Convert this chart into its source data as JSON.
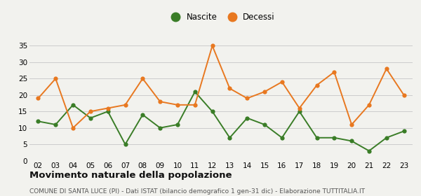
{
  "years": [
    "02",
    "03",
    "04",
    "05",
    "06",
    "07",
    "08",
    "09",
    "10",
    "11",
    "12",
    "13",
    "14",
    "15",
    "16",
    "17",
    "18",
    "19",
    "20",
    "21",
    "22",
    "23"
  ],
  "nascite": [
    12,
    11,
    17,
    13,
    15,
    5,
    14,
    10,
    11,
    21,
    15,
    7,
    13,
    11,
    7,
    15,
    7,
    7,
    6,
    3,
    7,
    9
  ],
  "decessi": [
    19,
    25,
    10,
    15,
    16,
    17,
    25,
    18,
    17,
    17,
    35,
    22,
    19,
    21,
    24,
    16,
    23,
    27,
    11,
    17,
    28,
    20
  ],
  "nascite_color": "#3a7d27",
  "decessi_color": "#e87820",
  "bg_color": "#f2f2ee",
  "grid_color": "#cccccc",
  "ylim": [
    0,
    37
  ],
  "yticks": [
    0,
    5,
    10,
    15,
    20,
    25,
    30,
    35
  ],
  "title": "Movimento naturale della popolazione",
  "subtitle": "COMUNE DI SANTA LUCE (PI) - Dati ISTAT (bilancio demografico 1 gen-31 dic) - Elaborazione TUTTITALIA.IT",
  "legend_labels": [
    "Nascite",
    "Decessi"
  ],
  "title_fontsize": 9.5,
  "subtitle_fontsize": 6.5,
  "axis_fontsize": 7.5,
  "legend_fontsize": 8.5
}
